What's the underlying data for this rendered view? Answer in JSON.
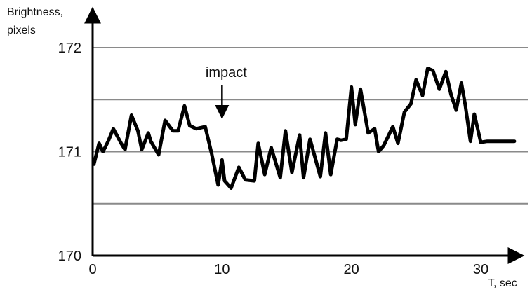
{
  "chart_data": {
    "type": "line",
    "title": "",
    "xlabel": "T, sec",
    "ylabel_lines": [
      "Brightness,",
      "pixels"
    ],
    "xlim": [
      0,
      33
    ],
    "ylim": [
      170,
      172
    ],
    "x_ticks": [
      0,
      10,
      20,
      30
    ],
    "x_tick_labels": [
      "0",
      "10",
      "20",
      "30"
    ],
    "y_ticks": [
      170,
      171,
      172
    ],
    "y_tick_labels": [
      "170",
      "171",
      "172"
    ],
    "gridlines_y": [
      170.5,
      171,
      171.5,
      172
    ],
    "grid": true,
    "legend": "none",
    "colors": {
      "line": "#000000",
      "grid": "#8a8a8a",
      "axis": "#000000"
    },
    "annotations": [
      {
        "text": "impact",
        "x": 10,
        "y": 171.25
      }
    ],
    "series": [
      {
        "name": "",
        "x": [
          0.1,
          0.5,
          0.8,
          1.2,
          1.6,
          2.2,
          2.5,
          3.0,
          3.5,
          3.8,
          4.3,
          4.5,
          5.1,
          5.6,
          6.2,
          6.6,
          7.1,
          7.5,
          8.0,
          8.7,
          9.2,
          9.7,
          10.0,
          10.2,
          10.7,
          11.3,
          11.8,
          12.5,
          12.8,
          13.3,
          13.8,
          14.5,
          14.9,
          15.4,
          16.0,
          16.3,
          16.8,
          17.6,
          18.0,
          18.4,
          18.9,
          19.2,
          19.6,
          20.0,
          20.3,
          20.7,
          21.3,
          21.8,
          22.1,
          22.5,
          23.2,
          23.6,
          24.1,
          24.6,
          25.0,
          25.5,
          25.9,
          26.3,
          26.8,
          27.3,
          27.7,
          28.1,
          28.5,
          28.8,
          29.2,
          29.5,
          30.0,
          30.5,
          31.0,
          31.5,
          31.9,
          32.3,
          32.6
        ],
        "y": [
          170.88,
          171.08,
          171.0,
          171.1,
          171.22,
          171.08,
          171.02,
          171.35,
          171.2,
          171.02,
          171.18,
          171.1,
          170.97,
          171.3,
          171.2,
          171.2,
          171.44,
          171.25,
          171.22,
          171.24,
          170.98,
          170.68,
          170.92,
          170.72,
          170.65,
          170.85,
          170.73,
          170.72,
          171.08,
          170.78,
          171.04,
          170.75,
          171.2,
          170.8,
          171.16,
          170.75,
          171.12,
          170.76,
          171.18,
          170.78,
          171.12,
          171.11,
          171.12,
          171.62,
          171.26,
          171.6,
          171.18,
          171.22,
          171.0,
          171.06,
          171.24,
          171.08,
          171.38,
          171.46,
          171.69,
          171.54,
          171.8,
          171.78,
          171.6,
          171.77,
          171.55,
          171.4,
          171.66,
          171.45,
          171.1,
          171.36,
          171.09,
          171.1,
          171.1,
          171.1,
          171.1,
          171.1,
          171.1
        ]
      }
    ]
  }
}
